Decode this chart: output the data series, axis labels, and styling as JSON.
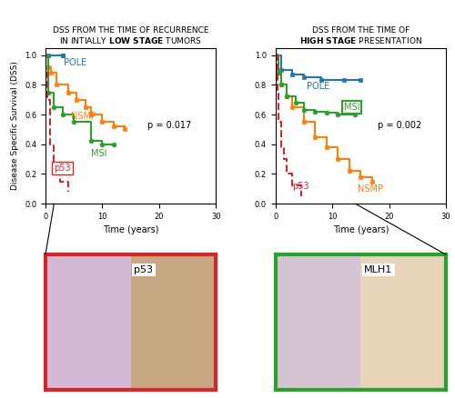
{
  "title_left": "DSS FROM THE TIME OF RECURRENCE\nIN INTIALLY ",
  "title_left_bold": "LOW STAGE",
  "title_left_end": " TUMORS",
  "title_right": "DSS FROM THE TIME OF\n",
  "title_right_bold": "HIGH STAGE",
  "title_right_end": " PRESENTATION",
  "ylabel": "Disease Specific Survival (DSS)",
  "xlabel": "Time (years)",
  "pvalue_left": "p = 0.017",
  "pvalue_right": "p = 0.002",
  "xlim": [
    0,
    30
  ],
  "ylim": [
    0,
    1
  ],
  "xticks": [
    0,
    10,
    20,
    30
  ],
  "yticks": [
    0,
    0.2,
    0.4,
    0.6,
    0.8,
    1.0
  ],
  "left_POLE": {
    "x": [
      0,
      0.5,
      3.0,
      3.0
    ],
    "y": [
      1.0,
      1.0,
      1.0,
      1.0
    ],
    "color": "#1f77b4",
    "marker": "s",
    "label": "POLE"
  },
  "left_NSMP": {
    "x": [
      0,
      0.5,
      1.0,
      2.0,
      4.0,
      5.5,
      7.0,
      8.0,
      10.0,
      12.0,
      14.0
    ],
    "y": [
      1.0,
      0.92,
      0.88,
      0.8,
      0.75,
      0.7,
      0.65,
      0.6,
      0.55,
      0.52,
      0.5
    ],
    "color": "#ff7f0e",
    "marker": "s",
    "label": "NSMP"
  },
  "left_MSI": {
    "x": [
      0,
      0.5,
      1.5,
      3.0,
      5.0,
      8.0,
      10.0,
      12.0
    ],
    "y": [
      1.0,
      0.75,
      0.65,
      0.6,
      0.55,
      0.42,
      0.4,
      0.4
    ],
    "color": "#2ca02c",
    "marker": "o",
    "label": "MSI"
  },
  "left_p53": {
    "x": [
      0,
      0.3,
      0.8,
      1.5,
      2.5,
      4.0
    ],
    "y": [
      0.88,
      0.7,
      0.4,
      0.25,
      0.15,
      0.08
    ],
    "color": "#d62728",
    "marker": null,
    "label": "p53",
    "linestyle": "--"
  },
  "right_POLE": {
    "x": [
      0,
      1.0,
      3.0,
      5.0,
      8.0,
      12.0,
      15.0
    ],
    "y": [
      1.0,
      0.9,
      0.87,
      0.85,
      0.83,
      0.83,
      0.83
    ],
    "color": "#1f77b4",
    "marker": "s",
    "label": "POLE"
  },
  "right_NSMP": {
    "x": [
      0,
      0.5,
      1.0,
      2.0,
      3.0,
      5.0,
      7.0,
      9.0,
      11.0,
      13.0,
      15.0,
      17.0
    ],
    "y": [
      1.0,
      0.88,
      0.8,
      0.72,
      0.65,
      0.55,
      0.45,
      0.38,
      0.3,
      0.22,
      0.18,
      0.15
    ],
    "color": "#ff7f0e",
    "marker": "s",
    "label": "NSMP"
  },
  "right_MSI": {
    "x": [
      0,
      0.5,
      1.0,
      2.0,
      3.5,
      5.0,
      7.0,
      9.0,
      11.0,
      14.0
    ],
    "y": [
      1.0,
      0.88,
      0.8,
      0.72,
      0.68,
      0.63,
      0.62,
      0.61,
      0.6,
      0.6
    ],
    "color": "#2ca02c",
    "marker": "o",
    "label": "MSI"
  },
  "right_p53": {
    "x": [
      0,
      0.3,
      0.5,
      1.0,
      1.5,
      2.0,
      3.0,
      4.5
    ],
    "y": [
      1.0,
      0.75,
      0.55,
      0.38,
      0.3,
      0.2,
      0.12,
      0.05
    ],
    "color": "#d62728",
    "marker": null,
    "label": "p53",
    "linestyle": "--"
  },
  "image_colors": {
    "p53_border": "#d62728",
    "msi_border": "#2ca02c"
  }
}
